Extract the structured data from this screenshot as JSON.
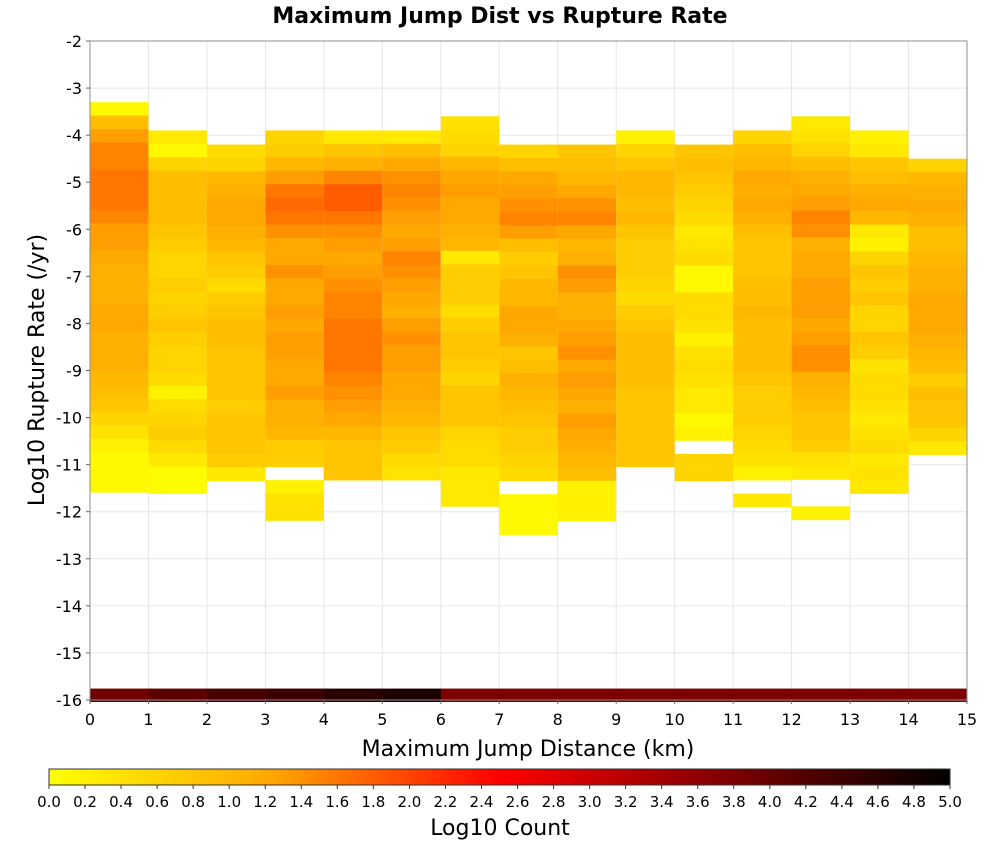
{
  "chart_data": {
    "type": "heatmap",
    "title": "Maximum Jump Dist vs Rupture Rate",
    "xlabel": "Maximum Jump Distance (km)",
    "ylabel": "Log10 Rupture Rate (/yr)",
    "xlim": [
      0,
      15
    ],
    "ylim": [
      -16,
      -2
    ],
    "x_ticks": [
      "0",
      "1",
      "2",
      "3",
      "4",
      "5",
      "6",
      "7",
      "8",
      "9",
      "10",
      "11",
      "12",
      "13",
      "14",
      "15"
    ],
    "y_ticks": [
      "-2",
      "-3",
      "-4",
      "-5",
      "-6",
      "-7",
      "-8",
      "-9",
      "-10",
      "-11",
      "-12",
      "-13",
      "-14",
      "-15",
      "-16"
    ],
    "grid": true,
    "x_bin_width": 1,
    "y_bin_width": 0.2857,
    "colorbar": {
      "label": "Log10 Count",
      "range": [
        0,
        5
      ],
      "ticks": [
        "0.0",
        "0.2",
        "0.4",
        "0.6",
        "0.8",
        "1.0",
        "1.2",
        "1.4",
        "1.6",
        "1.8",
        "2.0",
        "2.2",
        "2.4",
        "2.6",
        "2.8",
        "3.0",
        "3.2",
        "3.4",
        "3.6",
        "3.8",
        "4.0",
        "4.2",
        "4.4",
        "4.6",
        "4.8",
        "5.0"
      ],
      "colors": [
        "#ffff00",
        "#ffa500",
        "#ff0000",
        "#800000",
        "#000000"
      ]
    },
    "bottom_row": {
      "y": -15.9,
      "values": [
        3.9,
        4.1,
        4.3,
        4.4,
        4.6,
        4.7,
        3.8,
        3.8,
        3.8,
        3.8,
        3.8,
        3.8,
        3.8,
        3.8,
        3.8
      ]
    },
    "columns": [
      {
        "x": 0.5,
        "y_top": -3.3,
        "values": [
          0.1,
          0.9,
          1.3,
          1.5,
          1.5,
          1.6,
          1.6,
          1.6,
          1.5,
          1.3,
          1.3,
          1.2,
          1.1,
          1.1,
          1.1,
          1.2,
          1.2,
          1.1,
          1.1,
          1.1,
          1.0,
          0.9,
          0.8,
          0.6,
          0.4,
          0.2,
          0.1,
          0.1,
          0.1
        ]
      },
      {
        "x": 1.5,
        "y_top": -3.9,
        "values": [
          0.3,
          0.1,
          0.6,
          0.9,
          0.9,
          0.9,
          0.9,
          0.8,
          0.7,
          0.6,
          0.6,
          0.7,
          0.6,
          0.7,
          0.8,
          0.7,
          0.6,
          0.6,
          0.5,
          0.2,
          0.5,
          0.6,
          0.7,
          0.5,
          0.3,
          0.05,
          0.05
        ]
      },
      {
        "x": 2.5,
        "y_top": -4.2,
        "values": [
          0.5,
          0.6,
          1.0,
          1.1,
          1.2,
          1.2,
          1.1,
          1.0,
          0.8,
          0.7,
          0.5,
          0.7,
          0.8,
          0.9,
          0.9,
          0.8,
          0.8,
          0.8,
          0.8,
          0.7,
          0.8,
          0.8,
          0.8,
          0.7,
          0.3
        ]
      },
      {
        "x": 3.5,
        "y_top": -3.9,
        "values": [
          0.6,
          0.7,
          1.0,
          1.3,
          1.6,
          1.7,
          1.6,
          1.4,
          1.2,
          1.2,
          1.4,
          1.2,
          1.2,
          1.3,
          1.2,
          1.3,
          1.3,
          1.2,
          1.2,
          1.3,
          1.1,
          1.1,
          1.0,
          0.7,
          0.7,
          null,
          0.2,
          0.4,
          0.4
        ]
      },
      {
        "x": 4.5,
        "y_top": -3.9,
        "values": [
          0.3,
          0.8,
          1.1,
          1.5,
          1.8,
          1.8,
          1.6,
          1.4,
          1.3,
          1.2,
          1.3,
          1.4,
          1.5,
          1.5,
          1.6,
          1.6,
          1.6,
          1.6,
          1.5,
          1.4,
          1.3,
          1.2,
          1.0,
          0.8,
          0.8,
          0.8
        ]
      },
      {
        "x": 5.5,
        "y_top": -3.9,
        "values": [
          0.3,
          0.9,
          1.2,
          1.4,
          1.5,
          1.4,
          1.3,
          1.2,
          1.3,
          1.5,
          1.4,
          1.3,
          1.2,
          1.1,
          1.3,
          1.4,
          1.3,
          1.3,
          1.2,
          1.2,
          1.1,
          1.0,
          0.8,
          0.7,
          0.5,
          0.4
        ]
      },
      {
        "x": 6.5,
        "y_top": -3.6,
        "values": [
          0.4,
          0.5,
          0.6,
          1.0,
          1.2,
          1.3,
          1.2,
          1.2,
          1.1,
          1.0,
          0.3,
          0.7,
          0.7,
          0.7,
          0.5,
          0.7,
          0.8,
          0.8,
          0.7,
          0.6,
          0.8,
          0.8,
          0.8,
          0.6,
          0.5,
          0.5,
          0.3,
          0.3,
          0.3
        ]
      },
      {
        "x": 7.5,
        "y_top": -4.2,
        "values": [
          0.6,
          0.9,
          1.2,
          1.3,
          1.4,
          1.5,
          1.3,
          0.9,
          0.7,
          0.8,
          1.0,
          1.0,
          1.2,
          1.2,
          1.1,
          0.8,
          0.9,
          1.1,
          1.0,
          0.9,
          0.8,
          0.7,
          0.7,
          0.6,
          0.5,
          null,
          0.1,
          0.1,
          0.1
        ]
      },
      {
        "x": 8.5,
        "y_top": -4.2,
        "values": [
          0.8,
          0.9,
          1.0,
          1.2,
          1.4,
          1.5,
          1.2,
          1.0,
          1.1,
          1.4,
          1.3,
          1.1,
          1.1,
          1.2,
          1.3,
          1.4,
          1.2,
          1.3,
          1.2,
          1.1,
          1.3,
          1.2,
          1.1,
          1.0,
          0.9,
          0.2,
          0.2,
          0.2
        ]
      },
      {
        "x": 9.5,
        "y_top": -3.9,
        "values": [
          0.2,
          0.6,
          0.8,
          1.0,
          1.0,
          0.9,
          1.0,
          0.8,
          0.7,
          0.7,
          0.7,
          0.6,
          0.5,
          0.7,
          0.8,
          0.9,
          0.9,
          0.9,
          0.9,
          0.8,
          0.8,
          0.8,
          0.8,
          0.8,
          0.8
        ]
      },
      {
        "x": 10.5,
        "y_top": -4.2,
        "values": [
          0.8,
          0.9,
          0.8,
          0.7,
          0.6,
          0.5,
          0.3,
          0.4,
          0.5,
          0.1,
          0.1,
          0.5,
          0.5,
          0.4,
          0.2,
          0.4,
          0.5,
          0.4,
          0.3,
          0.3,
          0.1,
          0.2,
          null,
          0.6,
          0.6
        ]
      },
      {
        "x": 11.5,
        "y_top": -3.9,
        "values": [
          0.6,
          0.9,
          1.0,
          1.2,
          1.1,
          1.2,
          1.1,
          0.9,
          0.8,
          0.8,
          0.8,
          0.9,
          0.9,
          1.0,
          0.9,
          0.9,
          0.9,
          0.9,
          0.8,
          0.7,
          0.7,
          0.7,
          0.6,
          0.5,
          0.4,
          0.2,
          null,
          0.3
        ]
      },
      {
        "x": 12.5,
        "y_top": -3.6,
        "values": [
          0.3,
          0.4,
          0.6,
          0.9,
          1.1,
          1.2,
          1.3,
          1.5,
          1.4,
          1.1,
          1.2,
          1.2,
          1.3,
          1.3,
          1.3,
          1.2,
          1.3,
          1.4,
          1.4,
          1.1,
          1.0,
          0.9,
          0.8,
          0.8,
          0.7,
          0.4,
          0.3,
          null,
          null,
          0.2
        ]
      },
      {
        "x": 13.5,
        "y_top": -3.9,
        "values": [
          0.2,
          0.3,
          0.8,
          0.9,
          1.1,
          1.2,
          1.0,
          0.3,
          0.2,
          0.6,
          0.8,
          0.7,
          0.8,
          0.6,
          0.6,
          0.8,
          0.7,
          0.4,
          0.5,
          0.5,
          0.4,
          0.3,
          0.4,
          0.5,
          0.3,
          0.4,
          0.3
        ]
      },
      {
        "x": 14.5,
        "y_top": -4.5,
        "values": [
          0.6,
          1.0,
          1.1,
          1.2,
          1.1,
          0.9,
          0.9,
          1.0,
          1.1,
          1.1,
          1.2,
          1.2,
          1.2,
          1.1,
          1.0,
          0.9,
          0.7,
          0.9,
          0.8,
          0.8,
          0.6,
          0.3
        ]
      }
    ]
  }
}
